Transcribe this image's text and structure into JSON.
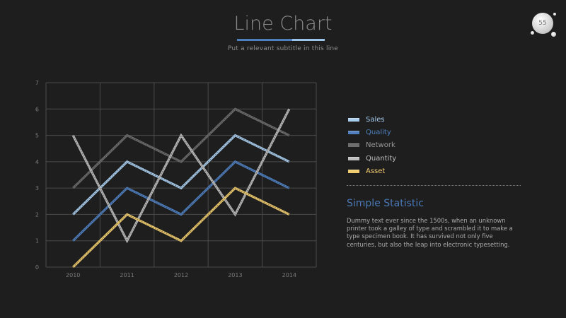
{
  "slide": {
    "title": "Line Chart",
    "subtitle": "Put a relevant subtitle in this line",
    "page_number": "55"
  },
  "colors": {
    "background": "#1e1e1e",
    "grid": "#4a4a4a",
    "title_bar_dark": "#4f7fbf",
    "title_bar_light": "#9cc3e8",
    "accent_text": "#4a79b8"
  },
  "chart_data": {
    "type": "line",
    "title": "",
    "xlabel": "",
    "ylabel": "",
    "categories": [
      "2010",
      "2011",
      "2012",
      "2013",
      "2014"
    ],
    "ylim": [
      0,
      7
    ],
    "yticks": [
      "0",
      "1",
      "2",
      "3",
      "4",
      "5",
      "6",
      "7"
    ],
    "grid": true,
    "legend_position": "right",
    "series": [
      {
        "name": "Sales",
        "color": "#a9cdee",
        "values": [
          2,
          4,
          3,
          5,
          4
        ]
      },
      {
        "name": "Quality",
        "color": "#4f7fbf",
        "values": [
          1,
          3,
          2,
          4,
          3
        ]
      },
      {
        "name": "Network",
        "color": "#6e6e6e",
        "values": [
          3,
          5,
          4,
          6,
          5
        ]
      },
      {
        "name": "Quantity",
        "color": "#bdbdbd",
        "values": [
          5,
          1,
          5,
          2,
          6
        ]
      },
      {
        "name": "Asset",
        "color": "#f0cc6e",
        "values": [
          0,
          2,
          1,
          3,
          2
        ]
      }
    ]
  },
  "info": {
    "title": "Simple Statistic",
    "body": "Dummy text ever since the 1500s, when an unknown printer took a galley of type and scrambled it to make a type specimen book. It has survived not only five centuries, but also the leap into electronic typesetting."
  }
}
